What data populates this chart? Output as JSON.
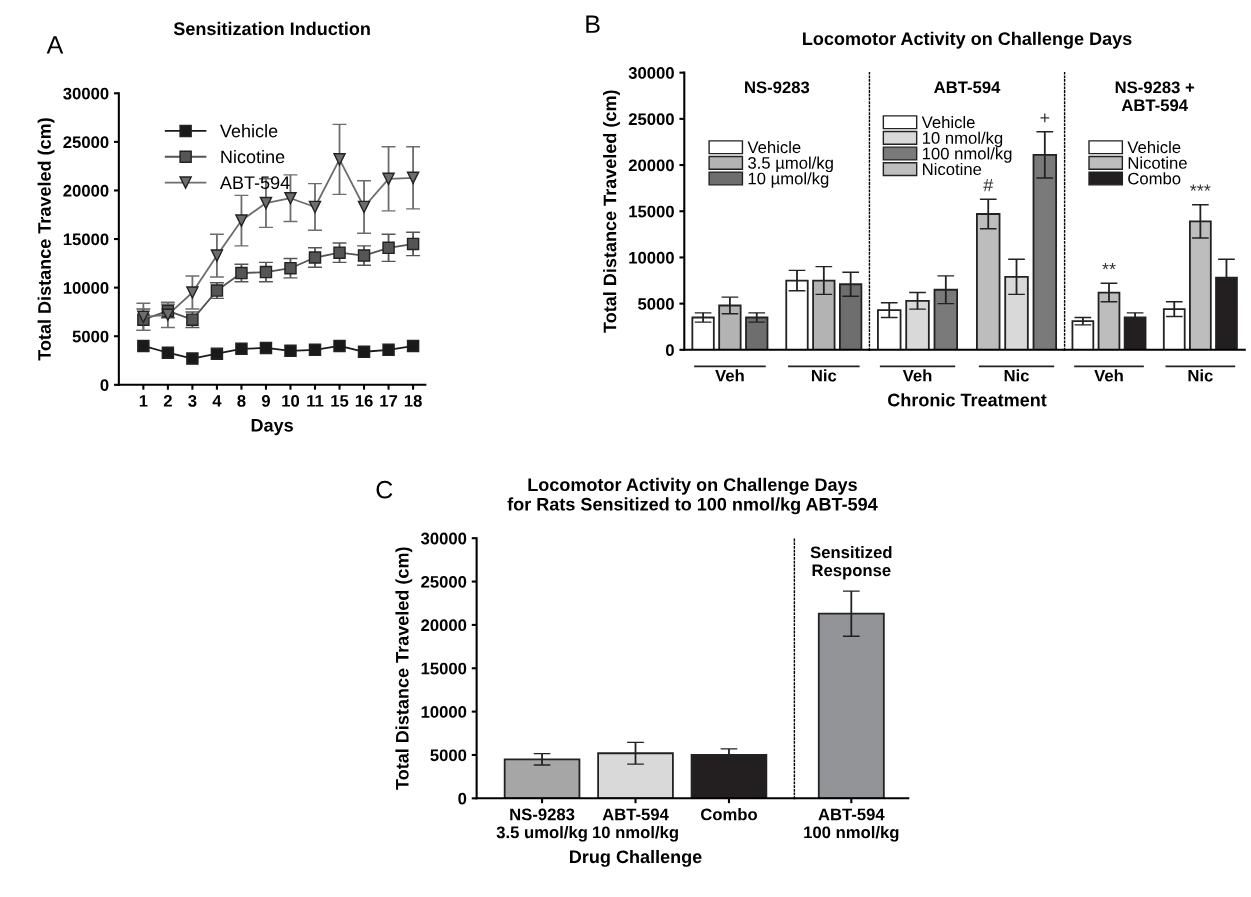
{
  "chart_data": [
    {
      "type": "line",
      "title": "Sensitization Induction",
      "xlabel": "Days",
      "ylabel": "Total Distance Traveled (cm)",
      "annotations": [
        "A"
      ],
      "categories": [
        "1",
        "2",
        "3",
        "4",
        "8",
        "9",
        "10",
        "11",
        "15",
        "16",
        "17",
        "18"
      ],
      "ylim": [
        0,
        30000
      ],
      "yticks": [
        0,
        5000,
        10000,
        15000,
        20000,
        25000,
        30000
      ],
      "legend": "top left",
      "grid": false,
      "series": [
        {
          "name": "Vehicle",
          "color": "#1a1a1a",
          "marker": "square",
          "values": [
            4000,
            3300,
            2700,
            3200,
            3700,
            3800,
            3500,
            3600,
            4000,
            3400,
            3600,
            4000
          ]
        },
        {
          "name": "Nicotine",
          "color": "#555555",
          "marker": "square",
          "values": [
            6700,
            7600,
            6700,
            9700,
            11500,
            11600,
            12000,
            13100,
            13600,
            13300,
            14100,
            14500
          ],
          "errors": [
            1100,
            700,
            800,
            800,
            900,
            1000,
            1000,
            1000,
            1000,
            1000,
            1400,
            1200
          ]
        },
        {
          "name": "ABT-594",
          "color": "#6d6d6d",
          "marker": "triangle",
          "values": [
            7000,
            7200,
            9500,
            13300,
            16900,
            18700,
            19200,
            18300,
            23200,
            18300,
            21200,
            21300
          ],
          "errors": [
            1400,
            1300,
            1700,
            2200,
            2600,
            2500,
            2400,
            2400,
            3600,
            2700,
            3300,
            3200
          ]
        }
      ]
    },
    {
      "type": "bar",
      "subtitle": "NS-9283",
      "ylabel": "Total Distance Traveled (cm)",
      "annotations": [
        "B"
      ],
      "categories": [
        null,
        "Veh",
        null,
        null,
        "Nic",
        null
      ],
      "ylim": [
        0,
        30000
      ],
      "yticks": [
        0,
        5000,
        10000,
        15000,
        20000,
        25000,
        30000
      ],
      "legend": "top left",
      "series": [
        {
          "name": "Vehicle",
          "color": "#ffffff",
          "values": [
            3500,
            null,
            null,
            7500,
            null,
            null
          ],
          "errors": [
            500,
            null,
            null,
            1100,
            null,
            null
          ]
        },
        {
          "name": "3.5 µmol/kg",
          "color": "#b3b3b3",
          "values": [
            null,
            4800,
            null,
            null,
            7500,
            null
          ],
          "errors": [
            null,
            900,
            null,
            null,
            1500,
            null
          ]
        },
        {
          "name": "10 µmol/kg",
          "color": "#6e6e6e",
          "values": [
            null,
            null,
            3500,
            null,
            null,
            7100
          ],
          "errors": [
            null,
            null,
            500,
            null,
            null,
            1300
          ]
        }
      ]
    },
    {
      "type": "bar",
      "title": "Locomotor Activity on Challenge Days",
      "subtitle": "ABT-594",
      "xlabel": "Chronic Treatment",
      "categories": [
        null,
        "Veh",
        null,
        null,
        "Nic",
        null
      ],
      "ylim": [
        0,
        30000
      ],
      "tick_labels": "x",
      "legend": "top left",
      "series": [
        {
          "name": "Vehicle",
          "color": "#ffffff",
          "values": [
            4300,
            null,
            null,
            null,
            null,
            null
          ],
          "errors": [
            800,
            null,
            null,
            null,
            null,
            null
          ]
        },
        {
          "name": "10 nmol/kg",
          "color": "#d9d9d9",
          "values": [
            null,
            5300,
            null,
            null,
            7900,
            null
          ],
          "errors": [
            null,
            900,
            null,
            null,
            1900,
            null
          ]
        },
        {
          "name": "100 nmol/kg",
          "color": "#7a7a7a",
          "values": [
            null,
            null,
            6500,
            null,
            null,
            21100
          ],
          "errors": [
            null,
            null,
            1500,
            null,
            null,
            2500
          ],
          "value_labels": [
            null,
            null,
            null,
            null,
            null,
            "+"
          ]
        },
        {
          "name": "Nicotine",
          "color": "#bdbdbd",
          "values": [
            null,
            null,
            null,
            14700,
            null,
            null
          ],
          "errors": [
            null,
            null,
            null,
            1600,
            null,
            null
          ],
          "value_labels": [
            null,
            null,
            null,
            "#",
            null,
            null
          ]
        }
      ]
    },
    {
      "type": "bar",
      "subtitle": "NS-9283 +\nABT-594",
      "categories": [
        null,
        "Veh",
        null,
        null,
        "Nic",
        null
      ],
      "ylim": [
        0,
        30000
      ],
      "tick_labels": "x",
      "legend": "top left",
      "series": [
        {
          "name": "Vehicle",
          "color": "#ffffff",
          "values": [
            3100,
            null,
            null,
            4400,
            null,
            null
          ],
          "errors": [
            400,
            null,
            null,
            800,
            null,
            null
          ]
        },
        {
          "name": "Nicotine",
          "color": "#bdbdbd",
          "values": [
            null,
            6200,
            null,
            null,
            13900,
            null
          ],
          "errors": [
            null,
            1000,
            null,
            null,
            1800,
            null
          ],
          "value_labels": [
            null,
            "**",
            null,
            null,
            "***",
            null
          ]
        },
        {
          "name": "Combo",
          "color": "#231f20",
          "values": [
            null,
            null,
            3500,
            null,
            null,
            7800
          ],
          "errors": [
            null,
            null,
            500,
            null,
            null,
            2000
          ]
        }
      ]
    },
    {
      "type": "bar",
      "title": "Locomotor Activity on Challenge Days\nfor Rats Sensitized to 100 nmol/kg ABT-594",
      "xlabel": "Drug Challenge",
      "ylabel": "Total Distance Traveled (cm)",
      "annotations": [
        "C"
      ],
      "categories": [
        "NS-9283\n3.5 umol/kg",
        "ABT-594\n10 nmol/kg",
        "Combo"
      ],
      "values": [
        4500,
        5200,
        5000
      ],
      "colors": [
        "#a6a6a6",
        "#d9d9d9",
        "#231f20"
      ],
      "errors": [
        650,
        1250,
        700
      ],
      "ylim": [
        0,
        30000
      ],
      "yticks": [
        0,
        5000,
        10000,
        15000,
        20000,
        25000,
        30000
      ]
    },
    {
      "type": "bar",
      "subtitle": "Sensitized\nResponse",
      "categories": [
        "ABT-594\n100 nmol/kg"
      ],
      "values": [
        21300
      ],
      "colors": [
        "#929497"
      ],
      "errors": [
        2600
      ],
      "ylim": [
        0,
        30000
      ],
      "tick_labels": "x"
    }
  ]
}
